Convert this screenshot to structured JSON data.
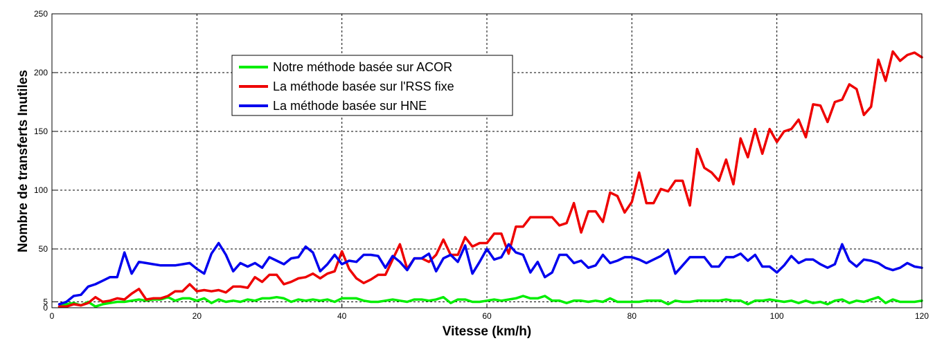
{
  "chart_data": {
    "type": "line",
    "title": "",
    "xlabel": "Vitesse (km/h)",
    "ylabel": "Nombre de transferts Inutiles",
    "xlim": [
      0,
      120
    ],
    "ylim": [
      0,
      250
    ],
    "xticks": [
      0,
      20,
      40,
      60,
      80,
      100,
      120
    ],
    "yticks": [
      0,
      5,
      50,
      100,
      150,
      200,
      250
    ],
    "grid": true,
    "legend_position": "upper-left-center",
    "x": [
      1,
      2,
      3,
      4,
      5,
      6,
      7,
      8,
      9,
      10,
      11,
      12,
      13,
      14,
      15,
      16,
      17,
      18,
      19,
      20,
      21,
      22,
      23,
      24,
      25,
      26,
      27,
      28,
      29,
      30,
      31,
      32,
      33,
      34,
      35,
      36,
      37,
      38,
      39,
      40,
      41,
      42,
      43,
      44,
      45,
      46,
      47,
      48,
      49,
      50,
      51,
      52,
      53,
      54,
      55,
      56,
      57,
      58,
      59,
      60,
      61,
      62,
      63,
      64,
      65,
      66,
      67,
      68,
      69,
      70,
      71,
      72,
      73,
      74,
      75,
      76,
      77,
      78,
      79,
      80,
      81,
      82,
      83,
      84,
      85,
      86,
      87,
      88,
      89,
      90,
      91,
      92,
      93,
      94,
      95,
      96,
      97,
      98,
      99,
      100,
      101,
      102,
      103,
      104,
      105,
      106,
      107,
      108,
      109,
      110,
      111,
      112,
      113,
      114,
      115,
      116,
      117,
      118,
      119,
      120
    ],
    "series": [
      {
        "name": "Notre méthode basée sur ACOR",
        "color": "#00ee00",
        "values": [
          1,
          3,
          4,
          2,
          5,
          1,
          3,
          4,
          5,
          5,
          6,
          7,
          6,
          7,
          7,
          9,
          6,
          8,
          8,
          6,
          8,
          4,
          7,
          5,
          6,
          5,
          7,
          6,
          8,
          8,
          9,
          8,
          5,
          7,
          6,
          7,
          6,
          7,
          5,
          8,
          8,
          8,
          6,
          5,
          5,
          6,
          7,
          6,
          5,
          7,
          7,
          6,
          7,
          9,
          4,
          7,
          7,
          5,
          5,
          6,
          7,
          6,
          7,
          8,
          10,
          8,
          8,
          10,
          6,
          6,
          4,
          6,
          6,
          5,
          6,
          5,
          8,
          5,
          5,
          5,
          5,
          6,
          6,
          6,
          3,
          6,
          5,
          5,
          6,
          6,
          6,
          6,
          7,
          6,
          6,
          3,
          6,
          6,
          7,
          6,
          5,
          6,
          4,
          6,
          4,
          5,
          3,
          6,
          7,
          4,
          6,
          5,
          7,
          9,
          4,
          7,
          5,
          5,
          5,
          6
        ]
      },
      {
        "name": "La méthode basée sur l'RSS fixe",
        "color": "#ee0000",
        "values": [
          1,
          1,
          3,
          2,
          4,
          9,
          5,
          6,
          8,
          7,
          12,
          16,
          7,
          8,
          8,
          10,
          14,
          14,
          20,
          14,
          15,
          14,
          15,
          13,
          18,
          18,
          17,
          26,
          22,
          28,
          28,
          20,
          22,
          25,
          26,
          29,
          25,
          29,
          31,
          48,
          33,
          25,
          21,
          24,
          28,
          28,
          41,
          54,
          33,
          42,
          42,
          39,
          45,
          58,
          45,
          45,
          60,
          52,
          55,
          55,
          63,
          63,
          46,
          69,
          69,
          77,
          77,
          77,
          77,
          70,
          72,
          89,
          64,
          82,
          82,
          73,
          98,
          95,
          81,
          90,
          115,
          89,
          89,
          101,
          99,
          108,
          108,
          87,
          135,
          119,
          115,
          108,
          126,
          105,
          144,
          128,
          152,
          131,
          152,
          141,
          150,
          152,
          160,
          145,
          173,
          172,
          158,
          175,
          177,
          190,
          186,
          164,
          171,
          211,
          193,
          218,
          210,
          215,
          217,
          213
        ]
      },
      {
        "name": "La méthode basée sur HNE",
        "color": "#0000ee",
        "values": [
          3,
          5,
          10,
          11,
          18,
          20,
          23,
          26,
          26,
          47,
          29,
          39,
          38,
          37,
          36,
          36,
          36,
          37,
          38,
          33,
          29,
          46,
          55,
          45,
          31,
          38,
          35,
          38,
          34,
          43,
          40,
          37,
          42,
          43,
          52,
          47,
          31,
          37,
          45,
          37,
          40,
          39,
          45,
          45,
          44,
          34,
          44,
          39,
          32,
          42,
          42,
          46,
          31,
          42,
          45,
          39,
          53,
          29,
          39,
          50,
          41,
          43,
          54,
          47,
          45,
          30,
          39,
          26,
          30,
          45,
          45,
          38,
          40,
          34,
          36,
          45,
          38,
          40,
          43,
          43,
          41,
          38,
          41,
          44,
          49,
          29,
          36,
          43,
          43,
          43,
          35,
          35,
          43,
          43,
          46,
          40,
          45,
          35,
          35,
          30,
          36,
          44,
          38,
          41,
          41,
          37,
          34,
          37,
          54,
          40,
          35,
          41,
          40,
          38,
          34,
          32,
          34,
          38,
          35,
          34
        ]
      }
    ]
  }
}
